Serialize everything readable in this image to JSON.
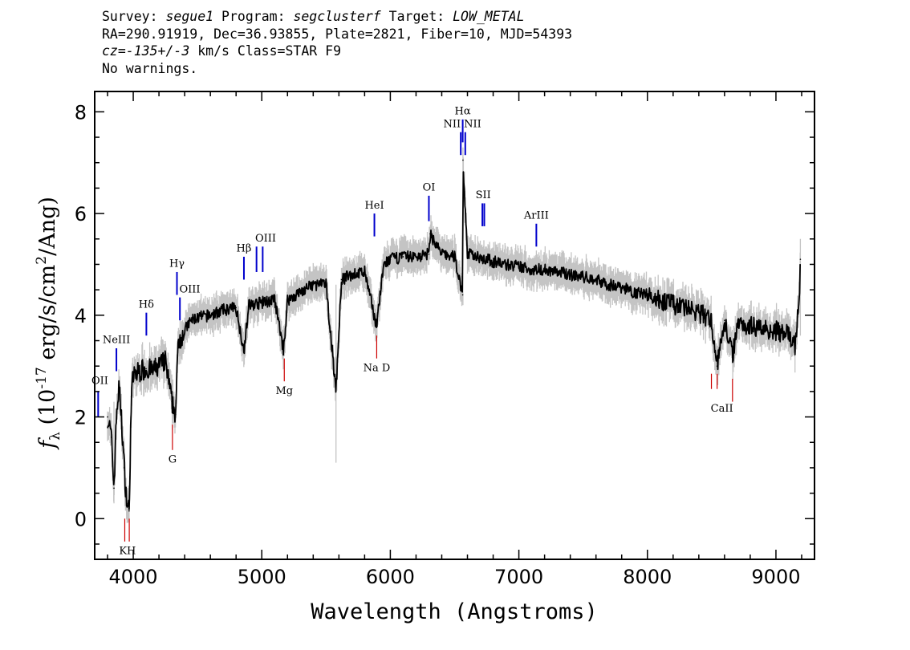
{
  "header": {
    "line1": {
      "p1": "Survey: ",
      "survey": "segue1",
      "p2": " Program: ",
      "program": "segclusterf",
      "p3": " Target: ",
      "target": "LOW_METAL"
    },
    "line2": "RA=290.91919, Dec=36.93855, Plate=2821, Fiber=10, MJD=54393",
    "line3": {
      "cz": "cz=-135+/-3",
      "rest": " km/s Class=STAR F9"
    },
    "line4": "No warnings."
  },
  "chart_data": {
    "type": "line",
    "xlabel": "Wavelength (Angstroms)",
    "ylabel": "f_λ (10^-17 erg/s/cm^2/Ang)",
    "xlim": [
      3700,
      9300
    ],
    "ylim": [
      -0.8,
      8.4
    ],
    "xticks": [
      4000,
      5000,
      6000,
      7000,
      8000,
      9000
    ],
    "yticks": [
      0,
      2,
      4,
      6,
      8
    ],
    "series": [
      {
        "color": "#000000",
        "points": [
          [
            3800,
            2.0
          ],
          [
            3830,
            1.6
          ],
          [
            3850,
            0.6
          ],
          [
            3870,
            2.1
          ],
          [
            3890,
            2.6
          ],
          [
            3910,
            1.9
          ],
          [
            3930,
            1.0
          ],
          [
            3950,
            0.3
          ],
          [
            3968,
            0.15
          ],
          [
            3985,
            2.4
          ],
          [
            4000,
            2.8
          ],
          [
            4050,
            2.9
          ],
          [
            4100,
            2.95
          ],
          [
            4150,
            2.9
          ],
          [
            4200,
            3.0
          ],
          [
            4250,
            3.1
          ],
          [
            4300,
            2.3
          ],
          [
            4330,
            2.05
          ],
          [
            4350,
            3.5
          ],
          [
            4400,
            3.7
          ],
          [
            4450,
            3.9
          ],
          [
            4500,
            3.95
          ],
          [
            4600,
            4.0
          ],
          [
            4700,
            4.1
          ],
          [
            4800,
            4.15
          ],
          [
            4861,
            3.3
          ],
          [
            4900,
            4.2
          ],
          [
            5000,
            4.25
          ],
          [
            5100,
            4.3
          ],
          [
            5170,
            3.3
          ],
          [
            5200,
            4.3
          ],
          [
            5300,
            4.45
          ],
          [
            5400,
            4.6
          ],
          [
            5500,
            4.6
          ],
          [
            5577,
            2.5
          ],
          [
            5620,
            4.7
          ],
          [
            5700,
            4.8
          ],
          [
            5800,
            4.85
          ],
          [
            5892,
            3.8
          ],
          [
            5950,
            5.0
          ],
          [
            6000,
            5.1
          ],
          [
            6100,
            5.15
          ],
          [
            6200,
            5.15
          ],
          [
            6300,
            5.2
          ],
          [
            6310,
            5.6
          ],
          [
            6400,
            5.2
          ],
          [
            6500,
            5.15
          ],
          [
            6563,
            4.4
          ],
          [
            6565,
            7.05
          ],
          [
            6600,
            5.2
          ],
          [
            6700,
            5.15
          ],
          [
            6800,
            5.05
          ],
          [
            6900,
            5.0
          ],
          [
            7000,
            4.95
          ],
          [
            7100,
            4.9
          ],
          [
            7200,
            4.9
          ],
          [
            7300,
            4.85
          ],
          [
            7400,
            4.8
          ],
          [
            7500,
            4.75
          ],
          [
            7600,
            4.7
          ],
          [
            7700,
            4.6
          ],
          [
            7800,
            4.55
          ],
          [
            7900,
            4.45
          ],
          [
            8000,
            4.4
          ],
          [
            8100,
            4.3
          ],
          [
            8200,
            4.2
          ],
          [
            8300,
            4.15
          ],
          [
            8400,
            4.05
          ],
          [
            8498,
            3.9
          ],
          [
            8542,
            3.0
          ],
          [
            8600,
            3.9
          ],
          [
            8662,
            3.2
          ],
          [
            8700,
            3.85
          ],
          [
            8800,
            3.8
          ],
          [
            8900,
            3.75
          ],
          [
            9000,
            3.7
          ],
          [
            9100,
            3.6
          ],
          [
            9150,
            3.4
          ],
          [
            9180,
            4.3
          ],
          [
            9190,
            5.1
          ]
        ]
      }
    ],
    "lines": [
      {
        "label": "OII",
        "wave": 3727,
        "color": "#0000cc",
        "y0": 2.0,
        "y1": 2.5
      },
      {
        "label": "NeIII",
        "wave": 3869,
        "color": "#0000cc",
        "y0": 2.9,
        "y1": 3.35
      },
      {
        "label": "Hδ",
        "wave": 4102,
        "color": "#0000cc",
        "y0": 3.6,
        "y1": 4.05
      },
      {
        "label": "Hγ",
        "wave": 4340,
        "color": "#0000cc",
        "y0": 4.4,
        "y1": 4.85
      },
      {
        "label": "OIII",
        "wave": 4363,
        "color": "#0000cc",
        "y0": 3.9,
        "y1": 4.35
      },
      {
        "label": "Hβ",
        "wave": 4861,
        "color": "#0000cc",
        "y0": 4.7,
        "y1": 5.15
      },
      {
        "label": "OIII",
        "wave": 4959,
        "color": "#0000cc",
        "y0": 4.85,
        "y1": 5.35
      },
      {
        "label": "OIII",
        "wave": 5007,
        "color": "#0000cc",
        "y0": 4.85,
        "y1": 5.35
      },
      {
        "label": "HeI",
        "wave": 5876,
        "color": "#0000cc",
        "y0": 5.55,
        "y1": 6.0
      },
      {
        "label": "OI",
        "wave": 6300,
        "color": "#0000cc",
        "y0": 5.85,
        "y1": 6.35
      },
      {
        "label": "NII",
        "wave": 6548,
        "color": "#0000cc",
        "y0": 7.15,
        "y1": 7.6
      },
      {
        "label": "Hα",
        "wave": 6563,
        "color": "#0000cc",
        "y0": 7.4,
        "y1": 7.85
      },
      {
        "label": "NII",
        "wave": 6583,
        "color": "#0000cc",
        "y0": 7.15,
        "y1": 7.6
      },
      {
        "label": "SII",
        "wave": 6716,
        "color": "#0000cc",
        "y0": 5.75,
        "y1": 6.2
      },
      {
        "label": "SII",
        "wave": 6731,
        "color": "#0000cc",
        "y0": 5.75,
        "y1": 6.2
      },
      {
        "label": "ArIII",
        "wave": 7136,
        "color": "#0000cc",
        "y0": 5.35,
        "y1": 5.8
      },
      {
        "label": "K",
        "wave": 3934,
        "color": "#cc0000",
        "y0": -0.45,
        "y1": 0.0
      },
      {
        "label": "H",
        "wave": 3969,
        "color": "#cc0000",
        "y0": -0.45,
        "y1": 0.0
      },
      {
        "label": "G",
        "wave": 4305,
        "color": "#cc0000",
        "y0": 1.35,
        "y1": 1.85
      },
      {
        "label": "Mg",
        "wave": 5175,
        "color": "#cc0000",
        "y0": 2.7,
        "y1": 3.15
      },
      {
        "label": "Na D",
        "wave": 5894,
        "color": "#cc0000",
        "y0": 3.15,
        "y1": 3.6
      },
      {
        "label": "CaII",
        "wave": 8498,
        "color": "#cc0000",
        "y0": 2.55,
        "y1": 2.85
      },
      {
        "label": "CaII",
        "wave": 8542,
        "color": "#cc0000",
        "y0": 2.55,
        "y1": 2.85
      },
      {
        "label": "CaII",
        "wave": 8662,
        "color": "#cc0000",
        "y0": 2.3,
        "y1": 2.75
      }
    ],
    "line_labels": [
      {
        "text": "OII",
        "wave": 3740,
        "y": 2.65
      },
      {
        "text": "NeIII",
        "wave": 3869,
        "y": 3.45
      },
      {
        "text": "Hδ",
        "wave": 4102,
        "y": 4.15
      },
      {
        "text": "Hγ",
        "wave": 4340,
        "y": 4.95
      },
      {
        "text": "OIII",
        "wave": 4440,
        "y": 4.45
      },
      {
        "text": "Hβ",
        "wave": 4861,
        "y": 5.25
      },
      {
        "text": "OIII",
        "wave": 5030,
        "y": 5.45
      },
      {
        "text": "HeI",
        "wave": 5876,
        "y": 6.1
      },
      {
        "text": "OI",
        "wave": 6300,
        "y": 6.45
      },
      {
        "text": "Hα",
        "wave": 6563,
        "y": 7.95
      },
      {
        "text": "NII",
        "wave": 6480,
        "y": 7.7
      },
      {
        "text": "NII",
        "wave": 6640,
        "y": 7.7
      },
      {
        "text": "SII",
        "wave": 6723,
        "y": 6.3
      },
      {
        "text": "ArIII",
        "wave": 7136,
        "y": 5.9
      },
      {
        "text": "KH",
        "wave": 3955,
        "y": -0.7
      },
      {
        "text": "G",
        "wave": 4305,
        "y": 1.1
      },
      {
        "text": "Mg",
        "wave": 5175,
        "y": 2.45
      },
      {
        "text": "Na D",
        "wave": 5894,
        "y": 2.9
      },
      {
        "text": "CaII",
        "wave": 8580,
        "y": 2.1
      }
    ]
  }
}
